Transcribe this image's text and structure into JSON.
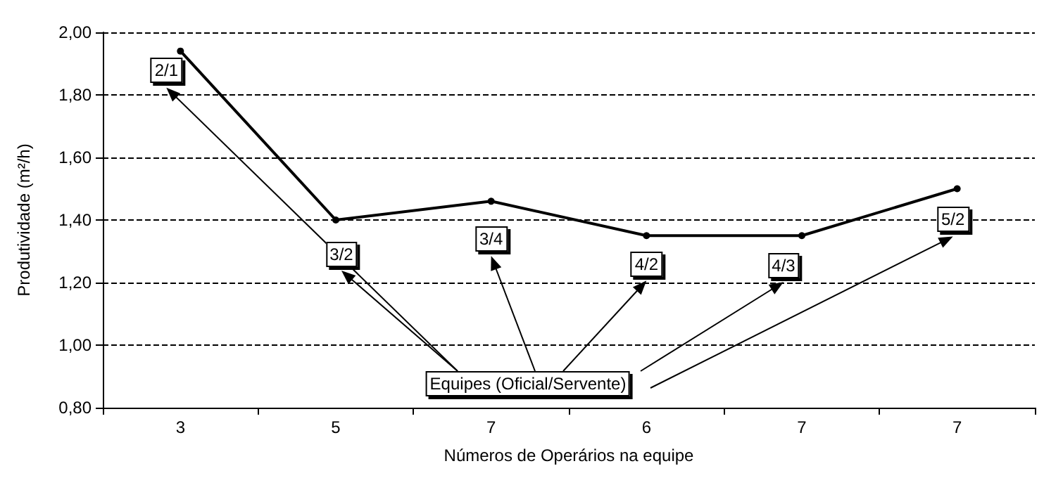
{
  "chart_data": {
    "type": "line",
    "xlabel": "Números de Operários na equipe",
    "ylabel": "Produtividade (m²/h)",
    "categories": [
      "3",
      "5",
      "7",
      "6",
      "7",
      "7"
    ],
    "series": [
      {
        "color": "#000000",
        "values": [
          1.94,
          1.4,
          1.46,
          1.35,
          1.35,
          1.5
        ]
      }
    ],
    "ylim": [
      0.8,
      2.0
    ],
    "yticks": [
      {
        "value": 0.8,
        "label": "0,80"
      },
      {
        "value": 1.0,
        "label": "1,00"
      },
      {
        "value": 1.2,
        "label": "1,20"
      },
      {
        "value": 1.4,
        "label": "1,40"
      },
      {
        "value": 1.6,
        "label": "1,60"
      },
      {
        "value": 1.8,
        "label": "1,80"
      },
      {
        "value": 2.0,
        "label": "2,00"
      }
    ],
    "grid": "y",
    "marker": "circle",
    "line_style": "solid",
    "annotations": [
      "2/1",
      "3/2",
      "3/4",
      "4/2",
      "4/3",
      "5/2",
      "Equipes (Oficial/Servente)"
    ]
  }
}
